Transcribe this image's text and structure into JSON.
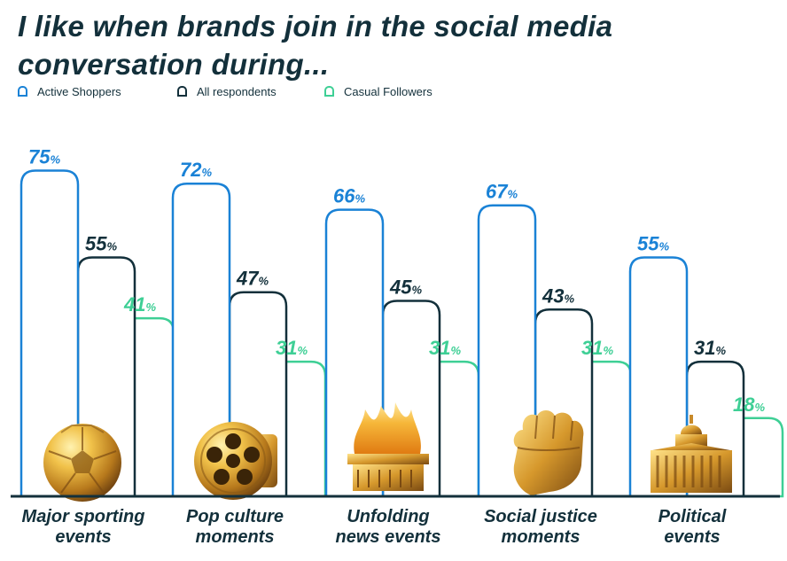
{
  "title": "I like when brands join in the social media conversation during...",
  "chart_data": {
    "type": "bar",
    "title": "I like when brands join in the social media conversation during...",
    "xlabel": "",
    "ylabel": "",
    "ylim": [
      0,
      100
    ],
    "grid": false,
    "legend_position": "top-left",
    "value_suffix": "%",
    "categories": [
      [
        "Major sporting",
        "events"
      ],
      [
        "Pop culture",
        "moments"
      ],
      [
        "Unfolding",
        "news events"
      ],
      [
        "Social justice",
        "moments"
      ],
      [
        "Political",
        "events"
      ]
    ],
    "category_icons": [
      "soccer-ball-icon",
      "film-reel-icon",
      "dumpster-fire-icon",
      "raised-fist-icon",
      "capitol-building-icon"
    ],
    "series": [
      {
        "name": "Active Shoppers",
        "color": "#1a82d6",
        "values": [
          75,
          72,
          66,
          67,
          55
        ]
      },
      {
        "name": "All respondents",
        "color": "#13303b",
        "values": [
          55,
          47,
          45,
          43,
          31
        ]
      },
      {
        "name": "Casual Followers",
        "color": "#3ecf95",
        "values": [
          41,
          31,
          31,
          31,
          18
        ]
      }
    ]
  }
}
